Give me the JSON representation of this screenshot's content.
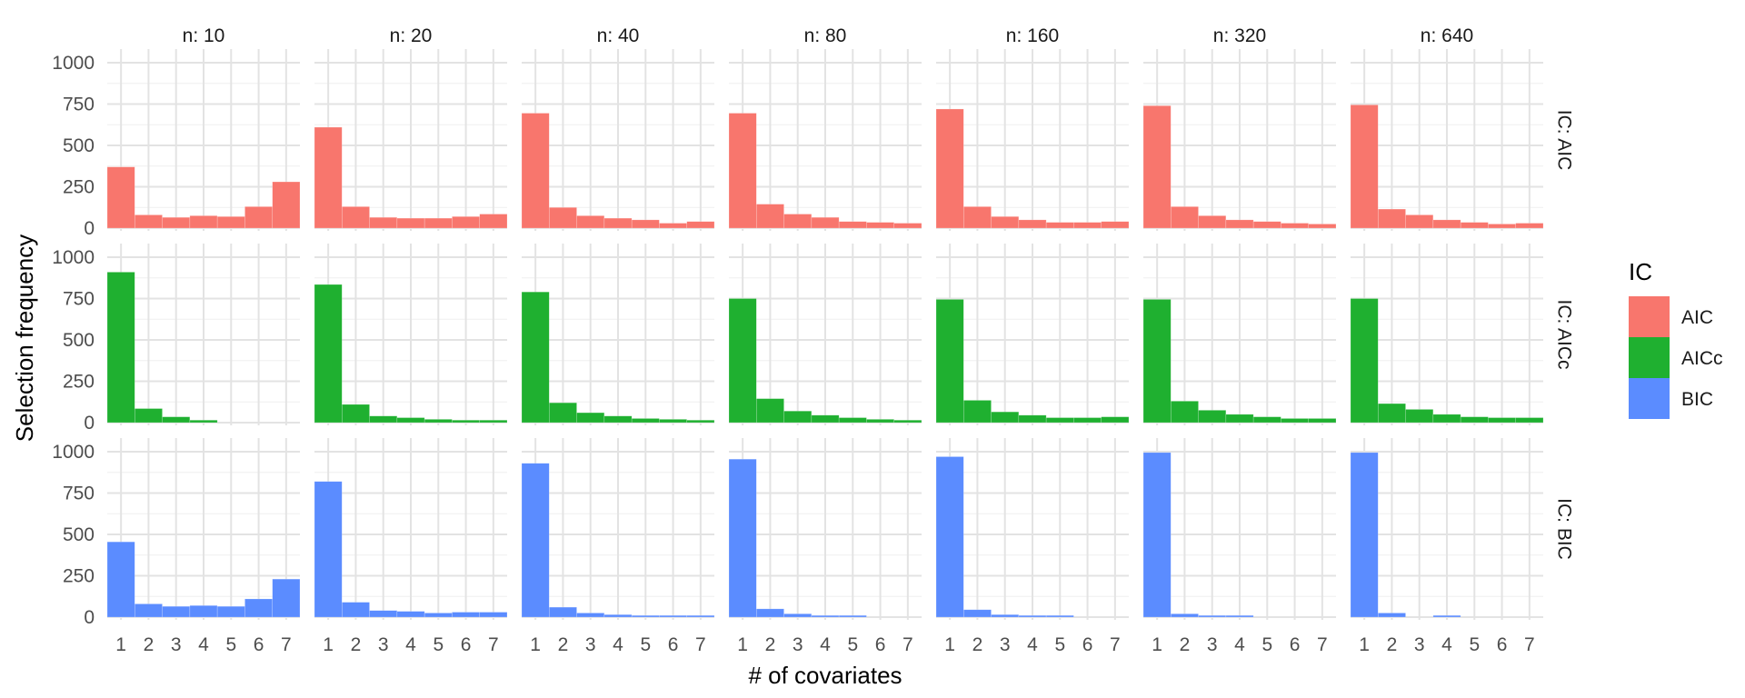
{
  "chart_data": {
    "type": "bar",
    "title": "",
    "xlabel": "# of covariates",
    "ylabel": "Selection frequency",
    "categories": [
      "1",
      "2",
      "3",
      "4",
      "5",
      "6",
      "7"
    ],
    "ylim": [
      0,
      1000
    ],
    "yticks": [
      0,
      250,
      500,
      750,
      1000
    ],
    "grid": true,
    "facet_columns": [
      "n: 10",
      "n: 20",
      "n: 40",
      "n: 80",
      "n: 160",
      "n: 320",
      "n: 640"
    ],
    "facet_rows": [
      "IC: AIC",
      "IC: AICc",
      "IC: BIC"
    ],
    "legend": {
      "title": "IC",
      "position": "right",
      "entries": [
        {
          "label": "AIC",
          "color": "#F8766D"
        },
        {
          "label": "AICc",
          "color": "#1FB030"
        },
        {
          "label": "BIC",
          "color": "#5B8CFF"
        }
      ]
    },
    "series": [
      {
        "name": "AIC",
        "color": "#F8766D",
        "panels": [
          {
            "n": "10",
            "values": [
              370,
              80,
              65,
              75,
              70,
              130,
              280
            ]
          },
          {
            "n": "20",
            "values": [
              610,
              130,
              65,
              60,
              60,
              70,
              85
            ]
          },
          {
            "n": "40",
            "values": [
              695,
              125,
              75,
              60,
              50,
              30,
              40
            ]
          },
          {
            "n": "80",
            "values": [
              695,
              145,
              85,
              65,
              40,
              35,
              30
            ]
          },
          {
            "n": "160",
            "values": [
              720,
              130,
              70,
              50,
              35,
              35,
              40
            ]
          },
          {
            "n": "320",
            "values": [
              740,
              130,
              75,
              50,
              40,
              30,
              25
            ]
          },
          {
            "n": "640",
            "values": [
              745,
              115,
              80,
              50,
              35,
              25,
              30
            ]
          }
        ]
      },
      {
        "name": "AICc",
        "color": "#1FB030",
        "panels": [
          {
            "n": "10",
            "values": [
              910,
              85,
              35,
              15,
              0,
              0,
              0
            ]
          },
          {
            "n": "20",
            "values": [
              835,
              110,
              40,
              30,
              20,
              15,
              15
            ]
          },
          {
            "n": "40",
            "values": [
              790,
              120,
              60,
              40,
              25,
              20,
              15
            ]
          },
          {
            "n": "80",
            "values": [
              750,
              145,
              70,
              45,
              30,
              20,
              15
            ]
          },
          {
            "n": "160",
            "values": [
              745,
              135,
              65,
              45,
              30,
              30,
              35
            ]
          },
          {
            "n": "320",
            "values": [
              745,
              130,
              75,
              50,
              35,
              25,
              25
            ]
          },
          {
            "n": "640",
            "values": [
              750,
              115,
              80,
              50,
              35,
              30,
              30
            ]
          }
        ]
      },
      {
        "name": "BIC",
        "color": "#5B8CFF",
        "panels": [
          {
            "n": "10",
            "values": [
              455,
              80,
              65,
              70,
              65,
              110,
              230
            ]
          },
          {
            "n": "20",
            "values": [
              820,
              90,
              40,
              35,
              25,
              30,
              30
            ]
          },
          {
            "n": "40",
            "values": [
              930,
              60,
              25,
              15,
              10,
              10,
              10
            ]
          },
          {
            "n": "80",
            "values": [
              955,
              50,
              20,
              10,
              10,
              0,
              0
            ]
          },
          {
            "n": "160",
            "values": [
              970,
              45,
              15,
              10,
              10,
              0,
              0
            ]
          },
          {
            "n": "320",
            "values": [
              995,
              20,
              10,
              10,
              0,
              0,
              0
            ]
          },
          {
            "n": "640",
            "values": [
              995,
              25,
              0,
              10,
              0,
              0,
              0
            ]
          }
        ]
      }
    ]
  }
}
